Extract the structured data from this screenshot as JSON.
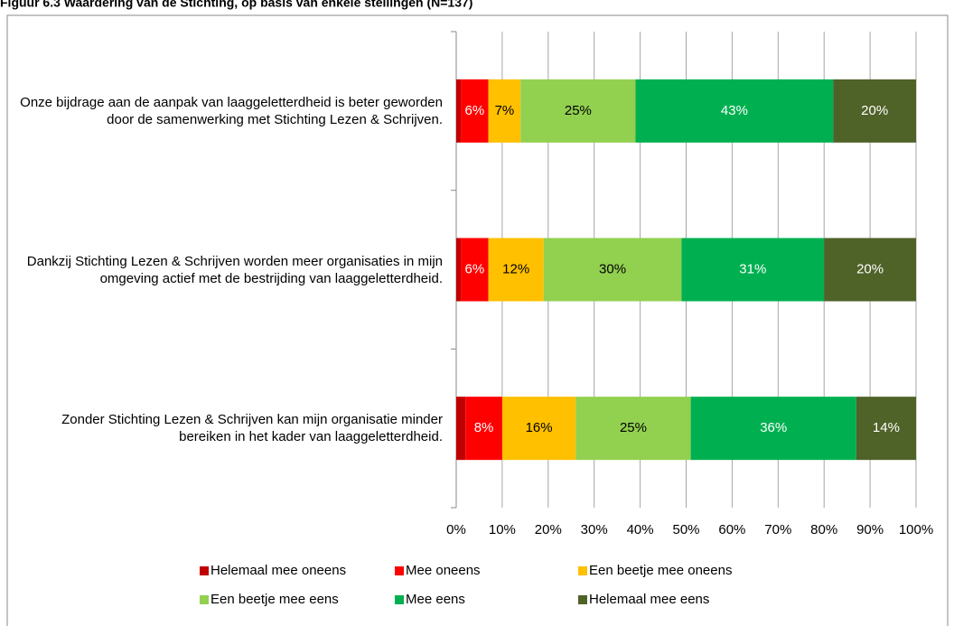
{
  "chart_data": {
    "type": "stacked_barh",
    "title": "Figuur 6.3 Waardering van de Stichting, op basis van enkele stellingen (N=137)",
    "categories": [
      "Onze bijdrage aan de aanpak van laaggeletterdheid is beter geworden door de samenwerking met Stichting Lezen & Schrijven.",
      "Dankzij Stichting Lezen & Schrijven worden meer organisaties in mijn omgeving actief met de bestrijding van laaggeletterdheid.",
      "Zonder Stichting Lezen & Schrijven kan mijn organisatie minder bereiken in het kader van laaggeletterdheid."
    ],
    "series": [
      {
        "name": "Helemaal mee oneens",
        "color": "#c00000",
        "values": [
          1,
          1,
          2
        ]
      },
      {
        "name": "Mee oneens",
        "color": "#ff0000",
        "values": [
          6,
          6,
          8
        ],
        "value_labels": [
          "6%",
          "6%",
          "8%"
        ]
      },
      {
        "name": "Een beetje mee oneens",
        "color": "#ffc000",
        "values": [
          7,
          12,
          16
        ],
        "value_labels": [
          "7%",
          "12%",
          "16%"
        ]
      },
      {
        "name": "Een beetje mee eens",
        "color": "#92d050",
        "values": [
          25,
          30,
          25
        ],
        "value_labels": [
          "25%",
          "30%",
          "25%"
        ]
      },
      {
        "name": "Mee eens",
        "color": "#00b050",
        "values": [
          43,
          31,
          36
        ],
        "value_labels": [
          "43%",
          "31%",
          "36%"
        ]
      },
      {
        "name": "Helemaal mee eens",
        "color": "#4f6228",
        "values": [
          20,
          20,
          14
        ],
        "value_labels": [
          "20%",
          "20%",
          "14%"
        ]
      }
    ],
    "xlim": [
      0,
      100
    ],
    "xticks": [
      {
        "value": 0,
        "label": "0%"
      },
      {
        "value": 10,
        "label": "10%"
      },
      {
        "value": 20,
        "label": "20%"
      },
      {
        "value": 30,
        "label": "30%"
      },
      {
        "value": 40,
        "label": "40%"
      },
      {
        "value": 50,
        "label": "50%"
      },
      {
        "value": 60,
        "label": "60%"
      },
      {
        "value": 70,
        "label": "70%"
      },
      {
        "value": 80,
        "label": "80%"
      },
      {
        "value": 90,
        "label": "90%"
      },
      {
        "value": 100,
        "label": "100%"
      }
    ],
    "grid": true,
    "legend": "bottom"
  }
}
